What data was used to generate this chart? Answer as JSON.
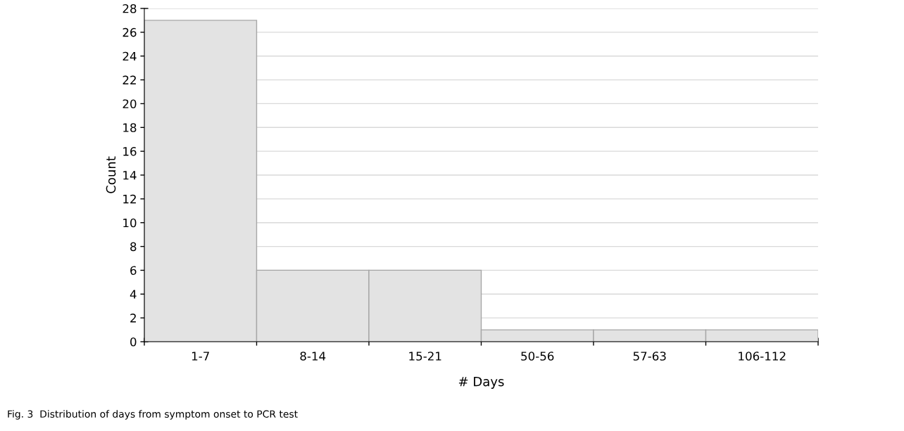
{
  "chart_data": {
    "type": "bar",
    "xlabel": "# Days",
    "ylabel": "Count",
    "categories": [
      "1-7",
      "8-14",
      "15-21",
      "50-56",
      "57-63",
      "106-112"
    ],
    "values": [
      27,
      6,
      6,
      1,
      1,
      1
    ],
    "color": "#e3e3e3",
    "ylim": [
      0,
      28
    ],
    "yticks": [
      0,
      2,
      4,
      6,
      8,
      10,
      12,
      14,
      16,
      18,
      20,
      22,
      24,
      26,
      28
    ],
    "grid": "y",
    "annotations": [
      "Fig. 3  Distribution of days from symptom onset to PCR test"
    ]
  }
}
